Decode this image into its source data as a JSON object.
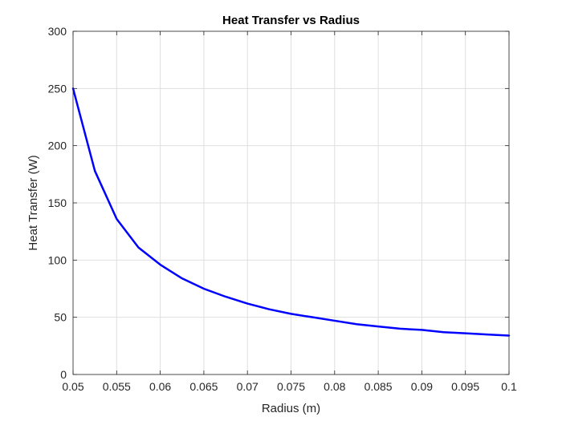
{
  "chart_data": {
    "type": "line",
    "title": "Heat Transfer vs Radius",
    "xlabel": "Radius (m)",
    "ylabel": "Heat Transfer (W)",
    "xlim": [
      0.05,
      0.1
    ],
    "ylim": [
      0,
      300
    ],
    "xticks": [
      "0.05",
      "0.055",
      "0.06",
      "0.065",
      "0.07",
      "0.075",
      "0.08",
      "0.085",
      "0.09",
      "0.095",
      "0.1"
    ],
    "yticks": [
      "0",
      "50",
      "100",
      "150",
      "200",
      "250",
      "300"
    ],
    "grid": true,
    "series": [
      {
        "color": "#0000ff",
        "x": [
          0.05,
          0.0525,
          0.055,
          0.0575,
          0.06,
          0.0625,
          0.065,
          0.0675,
          0.07,
          0.0725,
          0.075,
          0.0775,
          0.08,
          0.0825,
          0.085,
          0.0875,
          0.09,
          0.0925,
          0.095,
          0.0975,
          0.1
        ],
        "y": [
          250,
          178,
          136,
          111,
          96,
          84,
          75,
          68,
          62,
          57,
          53,
          50,
          47,
          44,
          42,
          40,
          39,
          37,
          36,
          35,
          34
        ]
      }
    ]
  }
}
